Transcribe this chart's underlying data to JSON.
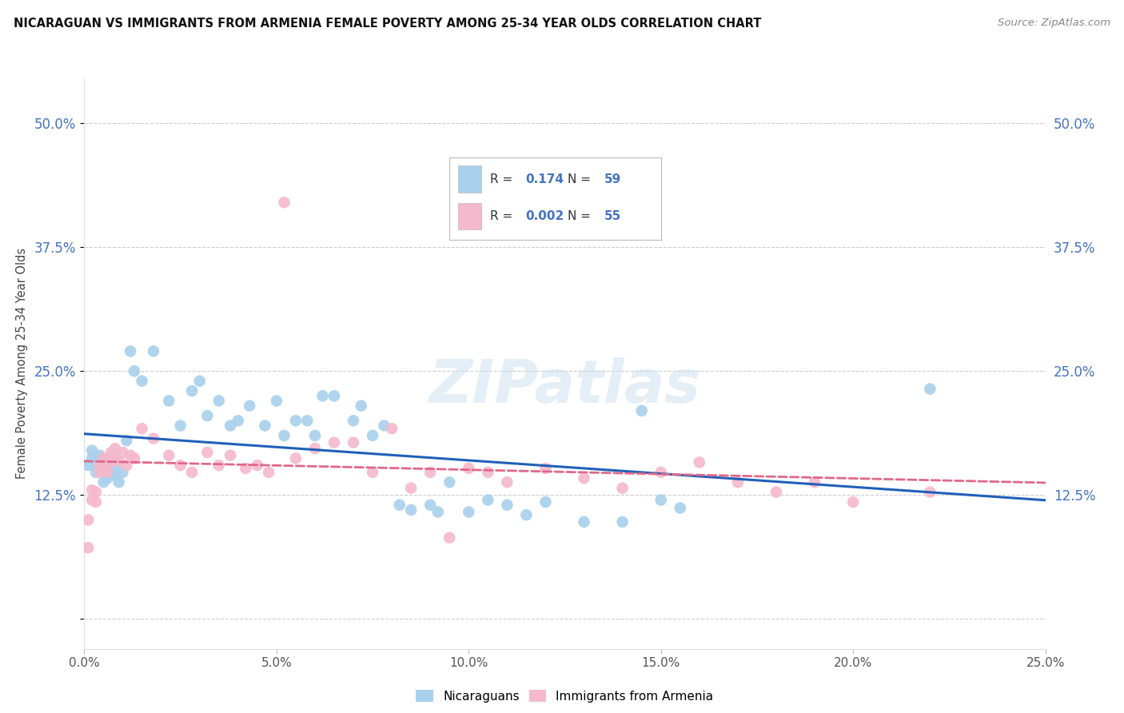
{
  "title": "NICARAGUAN VS IMMIGRANTS FROM ARMENIA FEMALE POVERTY AMONG 25-34 YEAR OLDS CORRELATION CHART",
  "source": "Source: ZipAtlas.com",
  "ylabel": "Female Poverty Among 25-34 Year Olds",
  "ytick_vals": [
    0.0,
    0.125,
    0.25,
    0.375,
    0.5
  ],
  "ytick_labels": [
    "",
    "12.5%",
    "25.0%",
    "37.5%",
    "50.0%"
  ],
  "xlim": [
    0.0,
    0.25
  ],
  "ylim": [
    -0.03,
    0.545
  ],
  "blue_R": "0.174",
  "blue_N": "59",
  "pink_R": "0.002",
  "pink_N": "55",
  "blue_color": "#a8d0ed",
  "pink_color": "#f5b8cc",
  "blue_line_color": "#2060b8",
  "pink_line_color": "#e06888",
  "legend_label_blue": "Nicaraguans",
  "legend_label_pink": "Immigrants from Armenia",
  "watermark": "ZIPatlas",
  "blue_x": [
    0.001,
    0.002,
    0.002,
    0.003,
    0.003,
    0.004,
    0.004,
    0.005,
    0.005,
    0.006,
    0.006,
    0.007,
    0.007,
    0.008,
    0.008,
    0.009,
    0.01,
    0.011,
    0.012,
    0.013,
    0.015,
    0.018,
    0.022,
    0.025,
    0.028,
    0.03,
    0.032,
    0.035,
    0.038,
    0.04,
    0.043,
    0.047,
    0.05,
    0.052,
    0.055,
    0.058,
    0.06,
    0.062,
    0.065,
    0.07,
    0.072,
    0.075,
    0.078,
    0.082,
    0.085,
    0.09,
    0.092,
    0.095,
    0.1,
    0.105,
    0.11,
    0.115,
    0.12,
    0.13,
    0.14,
    0.145,
    0.15,
    0.155,
    0.22
  ],
  "blue_y": [
    0.155,
    0.162,
    0.17,
    0.148,
    0.158,
    0.152,
    0.165,
    0.138,
    0.155,
    0.142,
    0.16,
    0.148,
    0.16,
    0.145,
    0.155,
    0.138,
    0.148,
    0.18,
    0.27,
    0.25,
    0.24,
    0.27,
    0.22,
    0.195,
    0.23,
    0.24,
    0.205,
    0.22,
    0.195,
    0.2,
    0.215,
    0.195,
    0.22,
    0.185,
    0.2,
    0.2,
    0.185,
    0.225,
    0.225,
    0.2,
    0.215,
    0.185,
    0.195,
    0.115,
    0.11,
    0.115,
    0.108,
    0.138,
    0.108,
    0.12,
    0.115,
    0.105,
    0.118,
    0.098,
    0.098,
    0.21,
    0.12,
    0.112,
    0.232
  ],
  "pink_x": [
    0.001,
    0.001,
    0.002,
    0.002,
    0.003,
    0.003,
    0.004,
    0.004,
    0.005,
    0.005,
    0.006,
    0.006,
    0.007,
    0.007,
    0.008,
    0.008,
    0.009,
    0.01,
    0.011,
    0.012,
    0.013,
    0.015,
    0.018,
    0.022,
    0.025,
    0.028,
    0.032,
    0.035,
    0.038,
    0.042,
    0.045,
    0.048,
    0.052,
    0.055,
    0.06,
    0.065,
    0.07,
    0.075,
    0.08,
    0.085,
    0.09,
    0.095,
    0.1,
    0.105,
    0.11,
    0.12,
    0.13,
    0.14,
    0.15,
    0.16,
    0.17,
    0.18,
    0.19,
    0.2,
    0.22
  ],
  "pink_y": [
    0.072,
    0.1,
    0.12,
    0.13,
    0.118,
    0.128,
    0.148,
    0.155,
    0.15,
    0.162,
    0.148,
    0.162,
    0.168,
    0.158,
    0.162,
    0.172,
    0.16,
    0.168,
    0.155,
    0.165,
    0.162,
    0.192,
    0.182,
    0.165,
    0.155,
    0.148,
    0.168,
    0.155,
    0.165,
    0.152,
    0.155,
    0.148,
    0.42,
    0.162,
    0.172,
    0.178,
    0.178,
    0.148,
    0.192,
    0.132,
    0.148,
    0.082,
    0.152,
    0.148,
    0.138,
    0.152,
    0.142,
    0.132,
    0.148,
    0.158,
    0.138,
    0.128,
    0.138,
    0.118,
    0.128
  ]
}
